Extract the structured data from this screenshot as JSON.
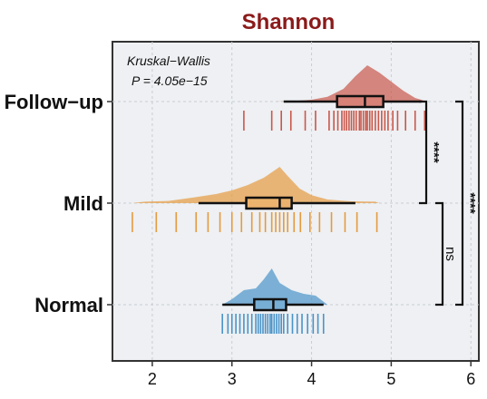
{
  "chart_data": {
    "type": "raincloud",
    "title": "Shannon",
    "orientation": "horizontal",
    "xlim": [
      1.5,
      6.1
    ],
    "xticks": [
      2,
      3,
      4,
      5,
      6
    ],
    "grid": true,
    "annotation": [
      "Kruskal−Wallis",
      "P = 4.05e−15"
    ],
    "groups": [
      {
        "name": "Follow−up",
        "color": "#c9574a",
        "box": {
          "whisker_low": 3.65,
          "q1": 4.32,
          "median": 4.67,
          "q3": 4.9,
          "whisker_high": 5.38
        },
        "density": [
          [
            3.55,
            0.0
          ],
          [
            3.8,
            0.02
          ],
          [
            4.0,
            0.05
          ],
          [
            4.2,
            0.13
          ],
          [
            4.4,
            0.35
          ],
          [
            4.55,
            0.7
          ],
          [
            4.7,
            1.0
          ],
          [
            4.85,
            0.8
          ],
          [
            5.0,
            0.55
          ],
          [
            5.15,
            0.3
          ],
          [
            5.3,
            0.1
          ],
          [
            5.45,
            0.0
          ]
        ],
        "points": [
          3.15,
          3.5,
          3.62,
          3.74,
          3.92,
          4.05,
          4.22,
          4.28,
          4.33,
          4.38,
          4.41,
          4.44,
          4.47,
          4.5,
          4.53,
          4.56,
          4.6,
          4.62,
          4.65,
          4.68,
          4.7,
          4.73,
          4.76,
          4.8,
          4.84,
          4.88,
          4.92,
          4.96,
          5.02,
          5.08,
          5.18,
          5.3,
          5.42
        ]
      },
      {
        "name": "Mild",
        "color": "#e59a3e",
        "box": {
          "whisker_low": 2.58,
          "q1": 3.18,
          "median": 3.6,
          "q3": 3.75,
          "whisker_high": 4.55
        },
        "density": [
          [
            1.75,
            0.0
          ],
          [
            1.9,
            0.04
          ],
          [
            2.2,
            0.06
          ],
          [
            2.5,
            0.15
          ],
          [
            2.8,
            0.25
          ],
          [
            3.0,
            0.35
          ],
          [
            3.2,
            0.5
          ],
          [
            3.4,
            0.7
          ],
          [
            3.5,
            0.85
          ],
          [
            3.6,
            1.0
          ],
          [
            3.7,
            0.75
          ],
          [
            3.85,
            0.4
          ],
          [
            4.0,
            0.22
          ],
          [
            4.2,
            0.1
          ],
          [
            4.5,
            0.05
          ],
          [
            4.8,
            0.04
          ],
          [
            4.85,
            0.0
          ]
        ],
        "points": [
          1.75,
          2.05,
          2.3,
          2.55,
          2.7,
          2.85,
          3.0,
          3.12,
          3.25,
          3.35,
          3.42,
          3.5,
          3.55,
          3.6,
          3.65,
          3.7,
          3.78,
          3.86,
          3.98,
          4.1,
          4.25,
          4.42,
          4.57,
          4.82
        ]
      },
      {
        "name": "Normal",
        "color": "#4a93c8",
        "box": {
          "whisker_low": 2.88,
          "q1": 3.28,
          "median": 3.52,
          "q3": 3.68,
          "whisker_high": 4.15
        },
        "density": [
          [
            2.88,
            0.0
          ],
          [
            3.0,
            0.15
          ],
          [
            3.15,
            0.4
          ],
          [
            3.3,
            0.45
          ],
          [
            3.4,
            0.7
          ],
          [
            3.5,
            1.0
          ],
          [
            3.6,
            0.6
          ],
          [
            3.75,
            0.4
          ],
          [
            3.9,
            0.3
          ],
          [
            4.05,
            0.25
          ],
          [
            4.2,
            0.0
          ]
        ],
        "points": [
          2.88,
          2.95,
          3.0,
          3.05,
          3.1,
          3.15,
          3.2,
          3.25,
          3.3,
          3.33,
          3.36,
          3.39,
          3.42,
          3.45,
          3.48,
          3.5,
          3.53,
          3.56,
          3.59,
          3.62,
          3.65,
          3.7,
          3.76,
          3.82,
          3.88,
          3.95,
          4.02,
          4.08,
          4.15
        ]
      }
    ],
    "comparisons": [
      {
        "from": "Follow−up",
        "to": "Mild",
        "label": "****"
      },
      {
        "from": "Mild",
        "to": "Normal",
        "label": "ns"
      },
      {
        "from": "Follow−up",
        "to": "Normal",
        "label": "****"
      }
    ]
  }
}
